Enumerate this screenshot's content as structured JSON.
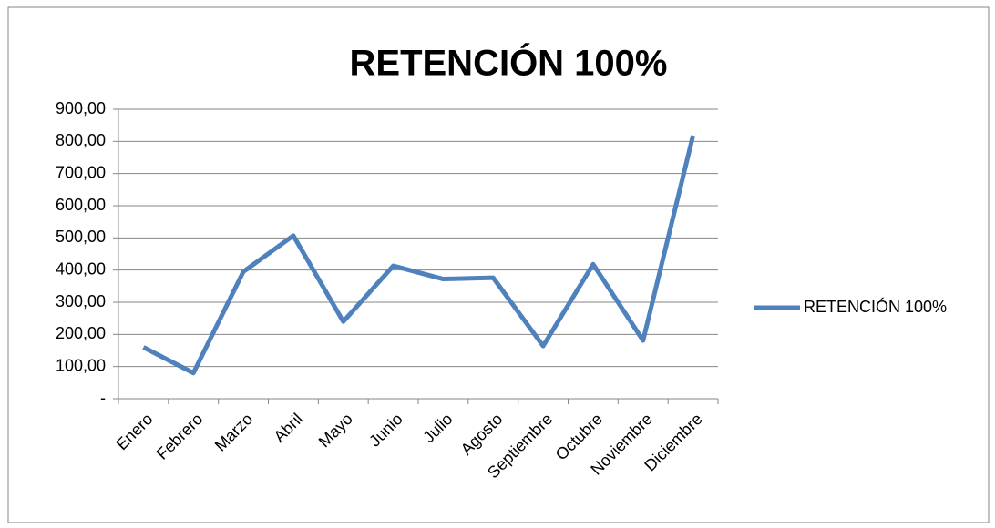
{
  "chart_data": {
    "type": "line",
    "title": "RETENCIÓN 100%",
    "categories": [
      "Enero",
      "Febrero",
      "Marzo",
      "Abril",
      "Mayo",
      "Junio",
      "Julio",
      "Agosto",
      "Septiembre",
      "Octubre",
      "Noviembre",
      "Diciembre"
    ],
    "series": [
      {
        "name": "RETENCIÓN 100%",
        "color": "#4f81bd",
        "values": [
          160,
          80,
          395,
          507,
          240,
          413,
          372,
          376,
          164,
          418,
          181,
          818
        ]
      }
    ],
    "ylim": [
      0,
      900
    ],
    "yticks": [
      {
        "value": 0,
        "label": "-"
      },
      {
        "value": 100,
        "label": "100,00"
      },
      {
        "value": 200,
        "label": "200,00"
      },
      {
        "value": 300,
        "label": "300,00"
      },
      {
        "value": 400,
        "label": "400,00"
      },
      {
        "value": 500,
        "label": "500,00"
      },
      {
        "value": 600,
        "label": "600,00"
      },
      {
        "value": 700,
        "label": "700,00"
      },
      {
        "value": 800,
        "label": "800,00"
      },
      {
        "value": 900,
        "label": "900,00"
      }
    ],
    "grid": true,
    "legend": "right"
  }
}
